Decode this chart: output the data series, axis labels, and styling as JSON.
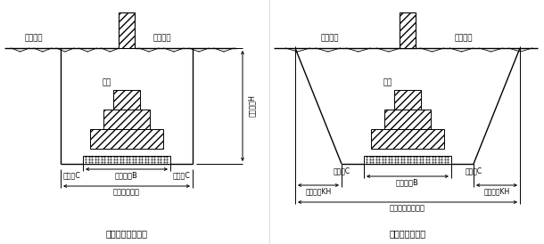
{
  "fig_width": 6.1,
  "fig_height": 2.74,
  "dpi": 100,
  "bg_color": "#ffffff",
  "left_title": "不放坡的基槽断面",
  "right_title": "放坡的基槽断面",
  "label_outdoor": "室外地坡",
  "label_indoor": "室内地坡",
  "label_foundation": "基础",
  "label_width_B": "基础宽度B",
  "label_work_C": "工作面C",
  "label_dig_width": "基槽开挤宽度",
  "label_dig_depth": "开挤深度H",
  "label_slope_KH": "放坡宽度KH",
  "label_base_dig_width": "基槽基底开挤宽度"
}
